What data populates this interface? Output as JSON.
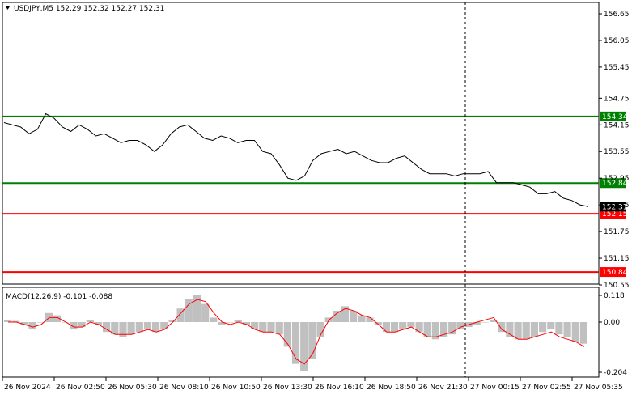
{
  "chart_data": [
    {
      "type": "line",
      "title": "USDJPY,M5  152.29 152.32 152.27 152.31",
      "symbol": "USDJPY,M5",
      "ohlc": [
        "152.29",
        "152.32",
        "152.27",
        "152.31"
      ],
      "price_ticks": [
        "156.65",
        "156.05",
        "155.45",
        "154.75",
        "154.15",
        "153.55",
        "152.95",
        "152.35",
        "151.75",
        "151.15",
        "150.55"
      ],
      "ylim": [
        150.5,
        156.7
      ],
      "x_ticks": [
        "26 Nov 2024",
        "26 Nov 02:50",
        "26 Nov 05:30",
        "26 Nov 08:10",
        "26 Nov 10:50",
        "26 Nov 13:30",
        "26 Nov 16:10",
        "26 Nov 18:50",
        "26 Nov 21:30",
        "27 Nov 00:15",
        "27 Nov 02:55",
        "27 Nov 05:35"
      ],
      "levels": [
        {
          "value": 154.34,
          "label": "154.34",
          "color": "#008000"
        },
        {
          "value": 152.84,
          "label": "152.84",
          "color": "#008000"
        },
        {
          "value": 152.15,
          "label": "152.15",
          "color": "#ff0000"
        },
        {
          "value": 150.84,
          "label": "150.84",
          "color": "#ff0000"
        }
      ],
      "current_price": {
        "value": 152.31,
        "label": "152.31"
      },
      "series": [
        {
          "values": [
            154.2,
            154.15,
            154.1,
            153.95,
            154.05,
            154.4,
            154.3,
            154.1,
            154.0,
            154.15,
            154.05,
            153.9,
            153.95,
            153.85,
            153.75,
            153.8,
            153.8,
            153.7,
            153.55,
            153.7,
            153.95,
            154.1,
            154.15,
            154.0,
            153.85,
            153.8,
            153.9,
            153.85,
            153.75,
            153.8,
            153.8,
            153.55,
            153.5,
            153.25,
            152.95,
            152.9,
            153.0,
            153.35,
            153.5,
            153.55,
            153.6,
            153.5,
            153.55,
            153.45,
            153.35,
            153.3,
            153.3,
            153.4,
            153.45,
            153.3,
            153.15,
            153.05,
            153.05,
            153.05,
            153.0,
            153.05,
            153.05,
            153.05,
            153.1,
            152.85,
            152.85,
            152.85,
            152.8,
            152.75,
            152.6,
            152.6,
            152.65,
            152.5,
            152.45,
            152.35,
            152.31
          ]
        }
      ],
      "vline_x_index": 48
    },
    {
      "type": "bar",
      "title": "MACD(12,26,9) -0.101 -0.088",
      "y_ticks": [
        "0.118",
        "0.00",
        "-0.204"
      ],
      "ylim": [
        -0.204,
        0.118
      ],
      "series": [
        {
          "name": "histogram",
          "color": "#c0c0c0",
          "values": [
            0.01,
            0.005,
            -0.01,
            -0.03,
            0.0,
            0.04,
            0.03,
            0.0,
            -0.03,
            -0.02,
            0.01,
            -0.01,
            -0.04,
            -0.05,
            -0.06,
            -0.05,
            -0.04,
            -0.03,
            -0.04,
            -0.03,
            0.01,
            0.06,
            0.1,
            0.12,
            0.08,
            0.02,
            -0.01,
            0.0,
            0.01,
            -0.01,
            -0.03,
            -0.04,
            -0.04,
            -0.05,
            -0.1,
            -0.17,
            -0.2,
            -0.15,
            -0.06,
            0.02,
            0.05,
            0.07,
            0.05,
            0.03,
            0.02,
            -0.01,
            -0.04,
            -0.04,
            -0.03,
            -0.02,
            -0.04,
            -0.06,
            -0.07,
            -0.06,
            -0.05,
            -0.03,
            -0.02,
            -0.01,
            0.0,
            0.01,
            -0.04,
            -0.06,
            -0.07,
            -0.07,
            -0.06,
            -0.04,
            -0.03,
            -0.05,
            -0.06,
            -0.08,
            -0.088
          ]
        },
        {
          "name": "signal",
          "color": "#ff0000",
          "values": [
            0.0,
            0.0,
            -0.01,
            -0.02,
            -0.01,
            0.02,
            0.02,
            0.0,
            -0.02,
            -0.02,
            0.0,
            -0.01,
            -0.03,
            -0.05,
            -0.05,
            -0.05,
            -0.04,
            -0.03,
            -0.04,
            -0.03,
            0.0,
            0.04,
            0.08,
            0.1,
            0.09,
            0.04,
            0.0,
            -0.01,
            0.0,
            -0.01,
            -0.03,
            -0.04,
            -0.04,
            -0.05,
            -0.09,
            -0.15,
            -0.17,
            -0.13,
            -0.05,
            0.01,
            0.04,
            0.06,
            0.05,
            0.03,
            0.02,
            -0.01,
            -0.04,
            -0.04,
            -0.03,
            -0.02,
            -0.04,
            -0.06,
            -0.06,
            -0.05,
            -0.04,
            -0.02,
            -0.01,
            0.0,
            0.01,
            0.02,
            -0.03,
            -0.05,
            -0.07,
            -0.07,
            -0.06,
            -0.05,
            -0.04,
            -0.06,
            -0.07,
            -0.08,
            -0.1
          ]
        }
      ]
    }
  ],
  "colors": {
    "axis": "#000000",
    "grid": "#e8e8e8",
    "support": "#ff0000",
    "resistance": "#008000",
    "histogram": "#c0c0c0",
    "signal": "#ff0000",
    "price_line": "#000000"
  }
}
